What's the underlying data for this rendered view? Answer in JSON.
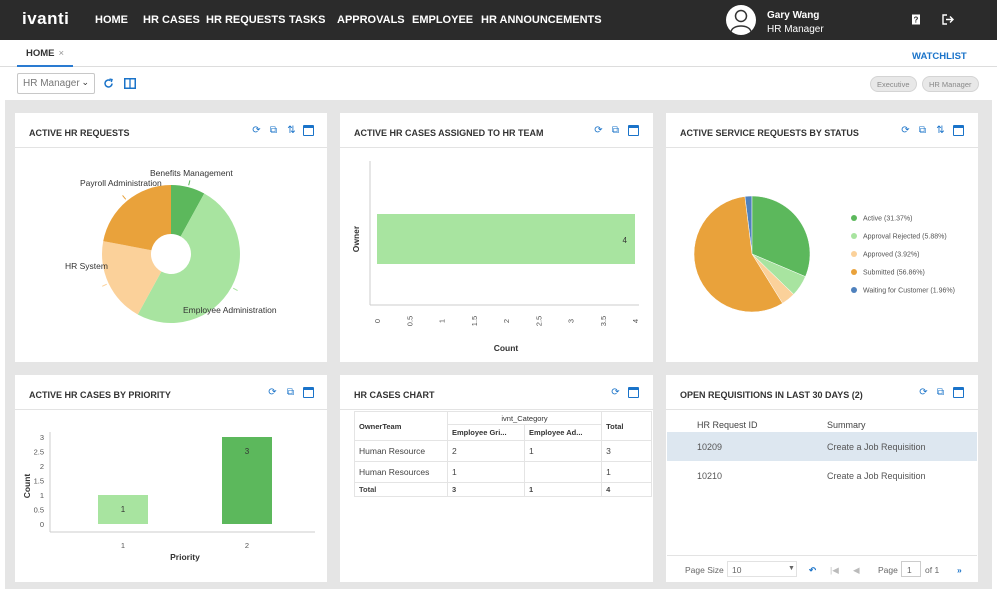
{
  "app": {
    "logo": "ivanti"
  },
  "nav": [
    "HOME",
    "HR CASES",
    "HR REQUESTS",
    "TASKS",
    "APPROVALS",
    "EMPLOYEE",
    "HR ANNOUNCEMENTS"
  ],
  "user": {
    "name": "Gary Wang",
    "role": "HR Manager"
  },
  "icons": {
    "help": "help-book-icon",
    "logout": "logout-icon",
    "refresh": "refresh-icon",
    "layout": "layout-icon",
    "export": "export-icon",
    "swap": "swap-icon",
    "window": "window-icon"
  },
  "tabs": {
    "home": "HOME",
    "close": "×",
    "watchlist": "WATCHLIST"
  },
  "toolbar": {
    "role_select": "HR Manager",
    "pills": [
      "Executive",
      "HR Manager"
    ]
  },
  "colors": {
    "green_light": "#a8e4a0",
    "green_dark": "#5cb85c",
    "orange": "#e9a23b",
    "peach": "#fbd19a",
    "blue": "#4f81bd",
    "link": "#1a73c9"
  },
  "panels": {
    "active_hr_requests": {
      "title": "ACTIVE HR REQUESTS"
    },
    "assigned_hr_team": {
      "title": "ACTIVE HR CASES ASSIGNED TO HR TEAM"
    },
    "service_by_status": {
      "title": "ACTIVE SERVICE REQUESTS BY STATUS"
    },
    "by_priority": {
      "title": "ACTIVE HR CASES BY PRIORITY"
    },
    "hr_cases_chart": {
      "title": "HR CASES CHART"
    },
    "open_requisitions": {
      "title": "OPEN REQUISITIONS IN LAST 30 DAYS (2)"
    }
  },
  "chart_data": [
    {
      "type": "pie",
      "title": "ACTIVE HR REQUESTS",
      "donut": true,
      "slices": [
        {
          "label": "Benefits Management",
          "value": 8,
          "color": "#5cb85c"
        },
        {
          "label": "Employee Administration",
          "value": 50,
          "color": "#a8e4a0"
        },
        {
          "label": "HR System",
          "value": 20,
          "color": "#fbd19a"
        },
        {
          "label": "Payroll Administration",
          "value": 22,
          "color": "#e9a23b"
        }
      ]
    },
    {
      "type": "bar",
      "orientation": "horizontal",
      "title": "ACTIVE HR CASES ASSIGNED TO HR TEAM",
      "categories": [
        ""
      ],
      "values": [
        4
      ],
      "ylabel": "Owner",
      "xlabel": "Count",
      "xlim": [
        0,
        4
      ],
      "ticks": [
        "0",
        "0.5",
        "1",
        "1.5",
        "2",
        "2.5",
        "3",
        "3.5",
        "4"
      ]
    },
    {
      "type": "pie",
      "title": "ACTIVE SERVICE REQUESTS BY STATUS",
      "legend": "right",
      "slices": [
        {
          "label": "Active (31.37%)",
          "value": 31.37,
          "color": "#5cb85c"
        },
        {
          "label": "Approval Rejected (5.88%)",
          "value": 5.88,
          "color": "#a8e4a0"
        },
        {
          "label": "Approved (3.92%)",
          "value": 3.92,
          "color": "#fbd19a"
        },
        {
          "label": "Submitted (56.86%)",
          "value": 56.86,
          "color": "#e9a23b"
        },
        {
          "label": "Waiting for Customer (1.96%)",
          "value": 1.96,
          "color": "#4f81bd"
        }
      ]
    },
    {
      "type": "bar",
      "title": "ACTIVE HR CASES BY PRIORITY",
      "categories": [
        "1",
        "2"
      ],
      "values": [
        1,
        3
      ],
      "colors": [
        "#a8e4a0",
        "#5cb85c"
      ],
      "xlabel": "Priority",
      "ylabel": "Count",
      "ylim": [
        0,
        3
      ],
      "yticks": [
        "0",
        "0.5",
        "1",
        "1.5",
        "2",
        "2.5",
        "3"
      ]
    },
    {
      "type": "table",
      "title": "HR CASES CHART",
      "group_header": "ivnt_Category",
      "columns": [
        "OwnerTeam",
        "Employee Gri...",
        "Employee Ad...",
        "Total"
      ],
      "rows": [
        [
          "Human Resource",
          "2",
          "1",
          "3"
        ],
        [
          "Human Resources",
          "1",
          "",
          "1"
        ]
      ],
      "total": [
        "Total",
        "3",
        "1",
        "4"
      ]
    }
  ],
  "requisitions": {
    "columns": [
      "HR Request ID",
      "Summary"
    ],
    "rows": [
      {
        "id": "10209",
        "summary": "Create a Job Requisition"
      },
      {
        "id": "10210",
        "summary": "Create a Job Requisition"
      }
    ],
    "pager": {
      "page_size_label": "Page Size",
      "page_size": "10",
      "page_label": "Page",
      "page": "1",
      "of_label": "of 1"
    }
  }
}
